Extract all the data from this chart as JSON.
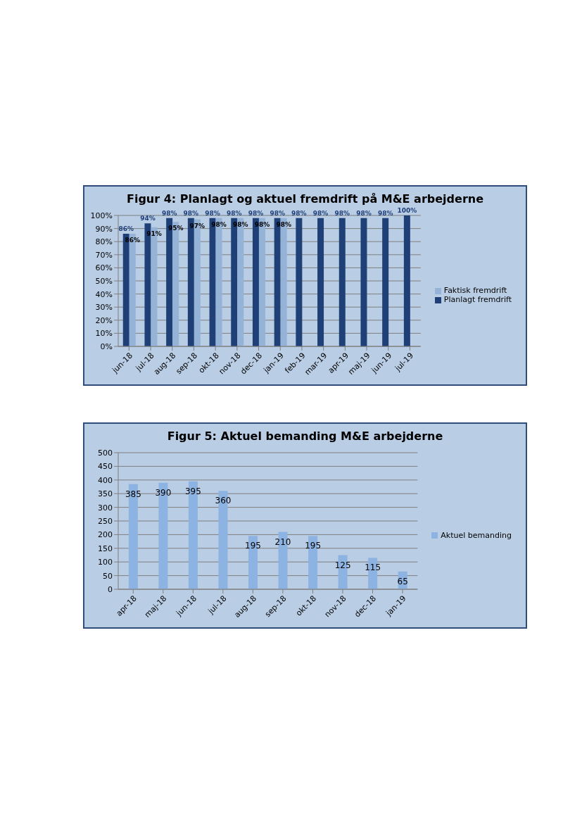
{
  "chart_data": [
    {
      "type": "bar",
      "title": "Figur 4: Planlagt og aktuel fremdrift på M&E arbejderne",
      "categories": [
        "jun-18",
        "jul-18",
        "aug-18",
        "sep-18",
        "okt-18",
        "nov-18",
        "dec-18",
        "jan-19",
        "feb-19",
        "mar-19",
        "apr-19",
        "maj-19",
        "jun-19",
        "jul-19"
      ],
      "series": [
        {
          "name": "Planlagt fremdrift",
          "color": "#1f3f77",
          "values": [
            86,
            94,
            98,
            98,
            98,
            98,
            98,
            98,
            98,
            98,
            98,
            98,
            98,
            100
          ],
          "value_labels": [
            "86%",
            "94%",
            "98%",
            "98%",
            "98%",
            "98%",
            "98%",
            "98%",
            "98%",
            "98%",
            "98%",
            "98%",
            "98%",
            "100%"
          ]
        },
        {
          "name": "Faktisk fremdrift",
          "color": "#95b3d7",
          "values": [
            86,
            91,
            95,
            97,
            98,
            98,
            98,
            98,
            null,
            null,
            null,
            null,
            null,
            null
          ],
          "value_labels": [
            "86%",
            "91%",
            "95%",
            "97%",
            "98%",
            "98%",
            "98%",
            "98%",
            null,
            null,
            null,
            null,
            null,
            null
          ]
        }
      ],
      "ylim": [
        0,
        100
      ],
      "yticks": [
        {
          "value": 0,
          "label": "0%"
        },
        {
          "value": 10,
          "label": "10%"
        },
        {
          "value": 20,
          "label": "20%"
        },
        {
          "value": 30,
          "label": "30%"
        },
        {
          "value": 40,
          "label": "40%"
        },
        {
          "value": 50,
          "label": "50%"
        },
        {
          "value": 60,
          "label": "60%"
        },
        {
          "value": 70,
          "label": "70%"
        },
        {
          "value": 80,
          "label": "80%"
        },
        {
          "value": 90,
          "label": "90%"
        },
        {
          "value": 100,
          "label": "100%"
        }
      ],
      "grid": "y",
      "legend": "right"
    },
    {
      "type": "bar",
      "title": "Figur 5: Aktuel bemanding M&E arbejderne",
      "categories": [
        "apr-18",
        "maj-18",
        "jun-18",
        "jul-18",
        "aug-18",
        "sep-18",
        "okt-18",
        "nov-18",
        "dec-18",
        "jan-19"
      ],
      "series": [
        {
          "name": "Aktuel bemanding",
          "color": "#8db3e2",
          "values": [
            385,
            390,
            395,
            360,
            195,
            210,
            195,
            125,
            115,
            65
          ]
        }
      ],
      "ylim": [
        0,
        500
      ],
      "yticks": [
        0,
        50,
        100,
        150,
        200,
        250,
        300,
        350,
        400,
        450,
        500
      ],
      "grid": "y",
      "legend": "right",
      "data_labels": true
    }
  ]
}
